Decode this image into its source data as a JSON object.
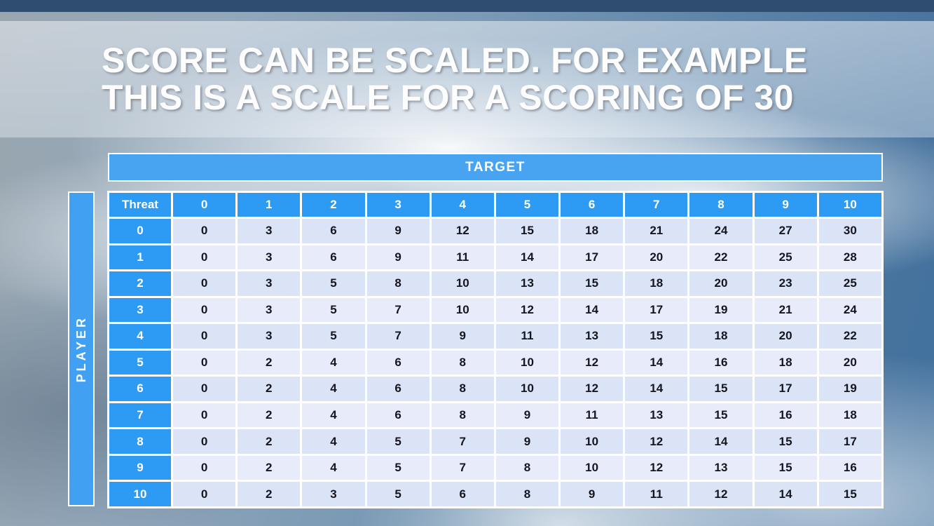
{
  "title": {
    "line1": "SCORE CAN BE SCALED. FOR EXAMPLE",
    "line2": "THIS IS A SCALE FOR A SCORING OF 30"
  },
  "table": {
    "target_label": "TARGET",
    "player_label": "PLAYER",
    "corner_label": "Threat",
    "column_headers": [
      "0",
      "1",
      "2",
      "3",
      "4",
      "5",
      "6",
      "7",
      "8",
      "9",
      "10"
    ],
    "row_headers": [
      "0",
      "1",
      "2",
      "3",
      "4",
      "5",
      "6",
      "7",
      "8",
      "9",
      "10"
    ],
    "rows": [
      [
        0,
        3,
        6,
        9,
        12,
        15,
        18,
        21,
        24,
        27,
        30
      ],
      [
        0,
        3,
        6,
        9,
        11,
        14,
        17,
        20,
        22,
        25,
        28
      ],
      [
        0,
        3,
        5,
        8,
        10,
        13,
        15,
        18,
        20,
        23,
        25
      ],
      [
        0,
        3,
        5,
        7,
        10,
        12,
        14,
        17,
        19,
        21,
        24
      ],
      [
        0,
        3,
        5,
        7,
        9,
        11,
        13,
        15,
        18,
        20,
        22
      ],
      [
        0,
        2,
        4,
        6,
        8,
        10,
        12,
        14,
        16,
        18,
        20
      ],
      [
        0,
        2,
        4,
        6,
        8,
        10,
        12,
        14,
        15,
        17,
        19
      ],
      [
        0,
        2,
        4,
        6,
        8,
        9,
        11,
        13,
        15,
        16,
        18
      ],
      [
        0,
        2,
        4,
        5,
        7,
        9,
        10,
        12,
        14,
        15,
        17
      ],
      [
        0,
        2,
        4,
        5,
        7,
        8,
        10,
        12,
        13,
        15,
        16
      ],
      [
        0,
        2,
        3,
        5,
        6,
        8,
        9,
        11,
        12,
        14,
        15
      ]
    ]
  },
  "colors": {
    "accent_blue": "#2d9bf3",
    "target_bar_blue": "#48a3f1",
    "player_bar_blue": "#42a0f2",
    "cell_light": "#dbe3f6",
    "cell_lighter": "#e8ecfa",
    "top_strip": "#2e4d6f",
    "title_text": "#fdfdfd",
    "cell_text": "#15151f"
  }
}
